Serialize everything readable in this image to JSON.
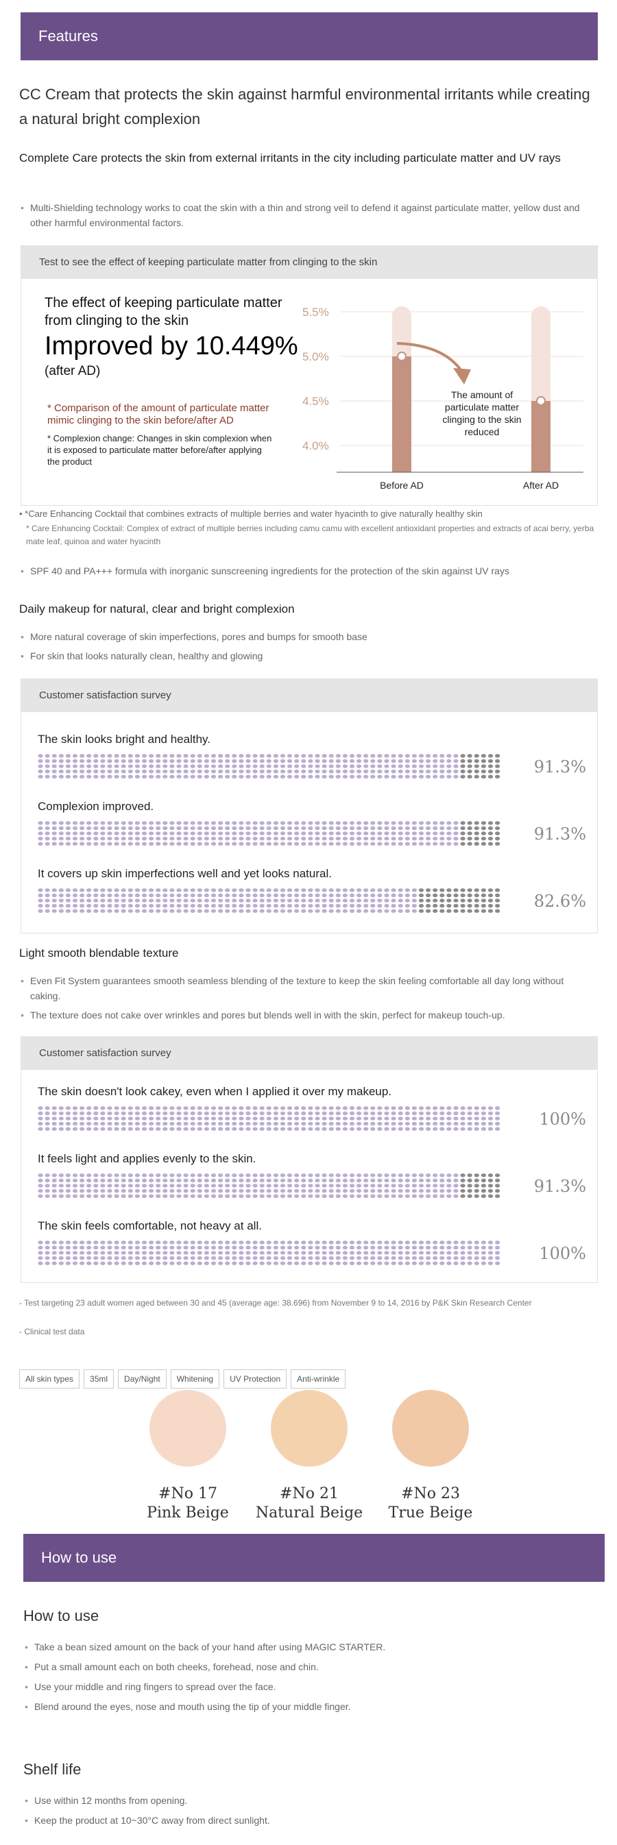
{
  "features_banner": "Features",
  "headline": "CC Cream that protects the skin against harmful environmental irritants while creating a natural bright complexion",
  "complete_care": {
    "title": "Complete Care protects the skin from external irritants in the city including particulate matter and UV rays",
    "bullets": [
      "Multi-Shielding technology works to coat the skin with a thin and strong veil to defend it against particulate matter, yellow dust and other harmful environmental factors."
    ]
  },
  "test_box": {
    "header": "Test to see the effect of keeping particulate matter from clinging to the skin",
    "effect_title": "The effect of keeping particulate matter from clinging to the skin",
    "improved": "Improved by 10.449%",
    "after_ad": "(after AD)",
    "note1": "* Comparison of the amount of particulate matter mimic clinging to the skin before/after AD",
    "note2": "* Complexion change: Changes in skin complexion when it is exposed to particulate matter before/after applying the product",
    "chart_note": "The amount of particulate matter clinging to the skin reduced"
  },
  "chart_data": {
    "type": "bar",
    "categories": [
      "Before AD",
      "After AD"
    ],
    "values": [
      5.0,
      4.5
    ],
    "yticks": [
      "5.5%",
      "5.0%",
      "4.5%",
      "4.0%"
    ],
    "ylim": [
      3.7,
      5.5
    ],
    "colors": {
      "bar": "#c49280",
      "track": "#f4e3dc",
      "tick": "#c8a089"
    }
  },
  "cocktail": {
    "line1": "• *Care Enhancing Cocktail that combines extracts of multiple berries and water hyacinth to give naturally healthy skin",
    "line2": "* Care Enhancing Cocktail: Complex of extract of multiple berries including camu camu with excellent antioxidant properties and extracts of acai berry, yerba mate leaf, quinoa and water hyacinth"
  },
  "spf_bullets": [
    "SPF 40 and PA+++ formula with inorganic sunscreening ingredients for the protection of the skin against UV rays"
  ],
  "daily": {
    "title": "Daily makeup for natural, clear and bright complexion",
    "bullets": [
      "More natural coverage of skin imperfections, pores and bumps for smooth base",
      "For skin that looks naturally clean, healthy and glowing"
    ]
  },
  "survey1": {
    "header": "Customer satisfaction survey",
    "items": [
      {
        "label": "The skin looks bright and healthy.",
        "pct": "91.3%",
        "value": 0.913
      },
      {
        "label": "Complexion improved.",
        "pct": "91.3%",
        "value": 0.913
      },
      {
        "label": "It covers up skin imperfections well and yet looks natural.",
        "pct": "82.6%",
        "value": 0.826
      }
    ]
  },
  "texture": {
    "title": "Light smooth blendable texture",
    "bullets": [
      "Even Fit System guarantees smooth seamless blending of the texture to keep the skin feeling comfortable all day long without caking.",
      "The texture does not cake over wrinkles and pores but blends well in with the skin, perfect for makeup touch-up."
    ]
  },
  "survey2": {
    "header": "Customer satisfaction survey",
    "items": [
      {
        "label": "The skin doesn't look cakey, even when I applied it over my makeup.",
        "pct": "100%",
        "value": 1.0
      },
      {
        "label": "It feels light and applies evenly to the skin.",
        "pct": "91.3%",
        "value": 0.913
      },
      {
        "label": "The skin feels comfortable, not heavy at all.",
        "pct": "100%",
        "value": 1.0
      }
    ]
  },
  "footnotes": {
    "line1": "- Test targeting 23 adult women aged between 30 and 45 (average age: 38.696) from November 9 to 14, 2016 by P&K Skin Research Center",
    "line2": "- Clinical test data"
  },
  "tags": [
    "All skin types",
    "35ml",
    "Day/Night",
    "Whitening",
    "UV Protection",
    "Anti-wrinkle"
  ],
  "shades": [
    {
      "no": "#No 17",
      "name": "Pink Beige",
      "color": "#f6dac7"
    },
    {
      "no": "#No 21",
      "name": "Natural Beige",
      "color": "#f5d2ae"
    },
    {
      "no": "#No 23",
      "name": "True Beige",
      "color": "#f1c9a7"
    }
  ],
  "howto_banner": "How to use",
  "howto": {
    "title": "How to use",
    "bullets": [
      "Take a bean sized amount on the back of your hand after using MAGIC STARTER.",
      "Put a small amount each on both cheeks, forehead, nose and chin.",
      "Use your middle and ring fingers to spread over the face.",
      "Blend around the eyes, nose and mouth using the tip of your middle finger."
    ]
  },
  "shelf": {
    "title": "Shelf life",
    "bullets": [
      "Use within 12 months from opening.",
      "Keep the product at 10~30°C away from direct sunlight."
    ]
  },
  "colors": {
    "banner": "#6b4f88",
    "dot_light": "#b9aed0",
    "dot_dark": "#8a8a8a"
  }
}
